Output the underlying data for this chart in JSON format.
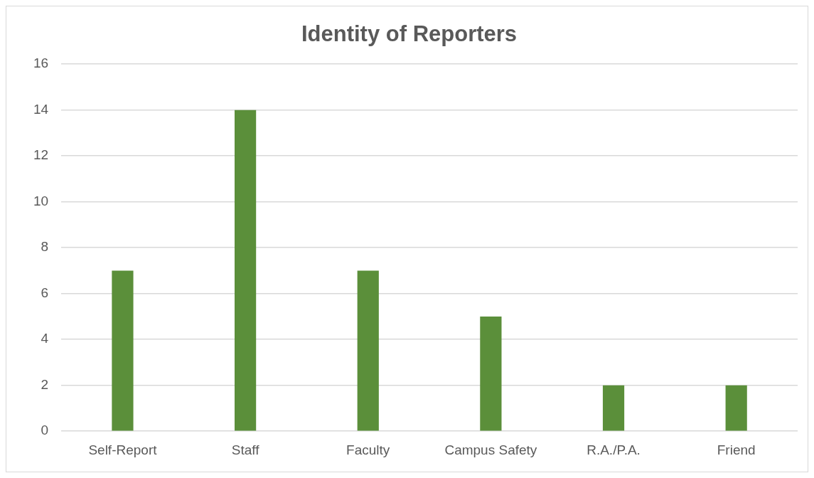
{
  "chart_data": {
    "type": "bar",
    "title": "Identity of Reporters",
    "categories": [
      "Self-Report",
      "Staff",
      "Faculty",
      "Campus Safety",
      "R.A./P.A.",
      "Friend"
    ],
    "values": [
      7,
      14,
      7,
      5,
      2,
      2
    ],
    "color": "#5b8f3a",
    "ylim": [
      0,
      16
    ],
    "yticks": [
      0,
      2,
      4,
      6,
      8,
      10,
      12,
      14,
      16
    ],
    "grid": "y",
    "legend": false
  }
}
